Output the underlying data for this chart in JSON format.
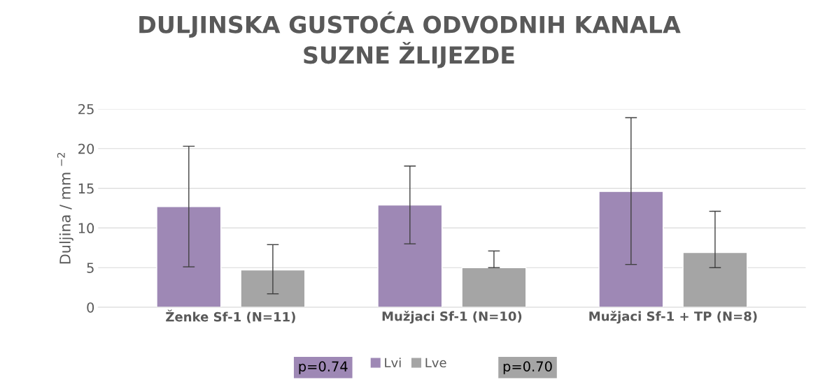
{
  "chart_data": {
    "type": "bar",
    "title": "DULJINSKA GUSTOĆA ODVODNIH KANALA\nSUZNE ŽLIJEZDE",
    "ylabel": "Duljina / mm $^{−2}$",
    "categories": [
      "Ženke Sf-1 (N=11)",
      "Mužjaci Sf-1 (N=10)",
      "Mužjaci Sf-1 + TP (N=8)"
    ],
    "series": [
      {
        "name": "Lvi",
        "color": "#9e88b5",
        "values": [
          12.7,
          12.9,
          14.6
        ],
        "errors": [
          [
            5.1,
            20.3
          ],
          [
            8.0,
            17.8
          ],
          [
            5.4,
            23.9
          ]
        ]
      },
      {
        "name": "Lve",
        "color": "#a5a5a5",
        "values": [
          4.7,
          5.0,
          6.9
        ],
        "errors": [
          [
            1.7,
            7.9
          ],
          [
            5.0,
            7.1
          ],
          [
            5.0,
            12.1
          ]
        ]
      }
    ],
    "ylim": [
      0,
      25
    ],
    "yticks": [
      0,
      5,
      10,
      15,
      20,
      25
    ],
    "grid": "y",
    "legend": "bottom",
    "annotations": [
      "p=0.74",
      "p=0.70"
    ]
  }
}
